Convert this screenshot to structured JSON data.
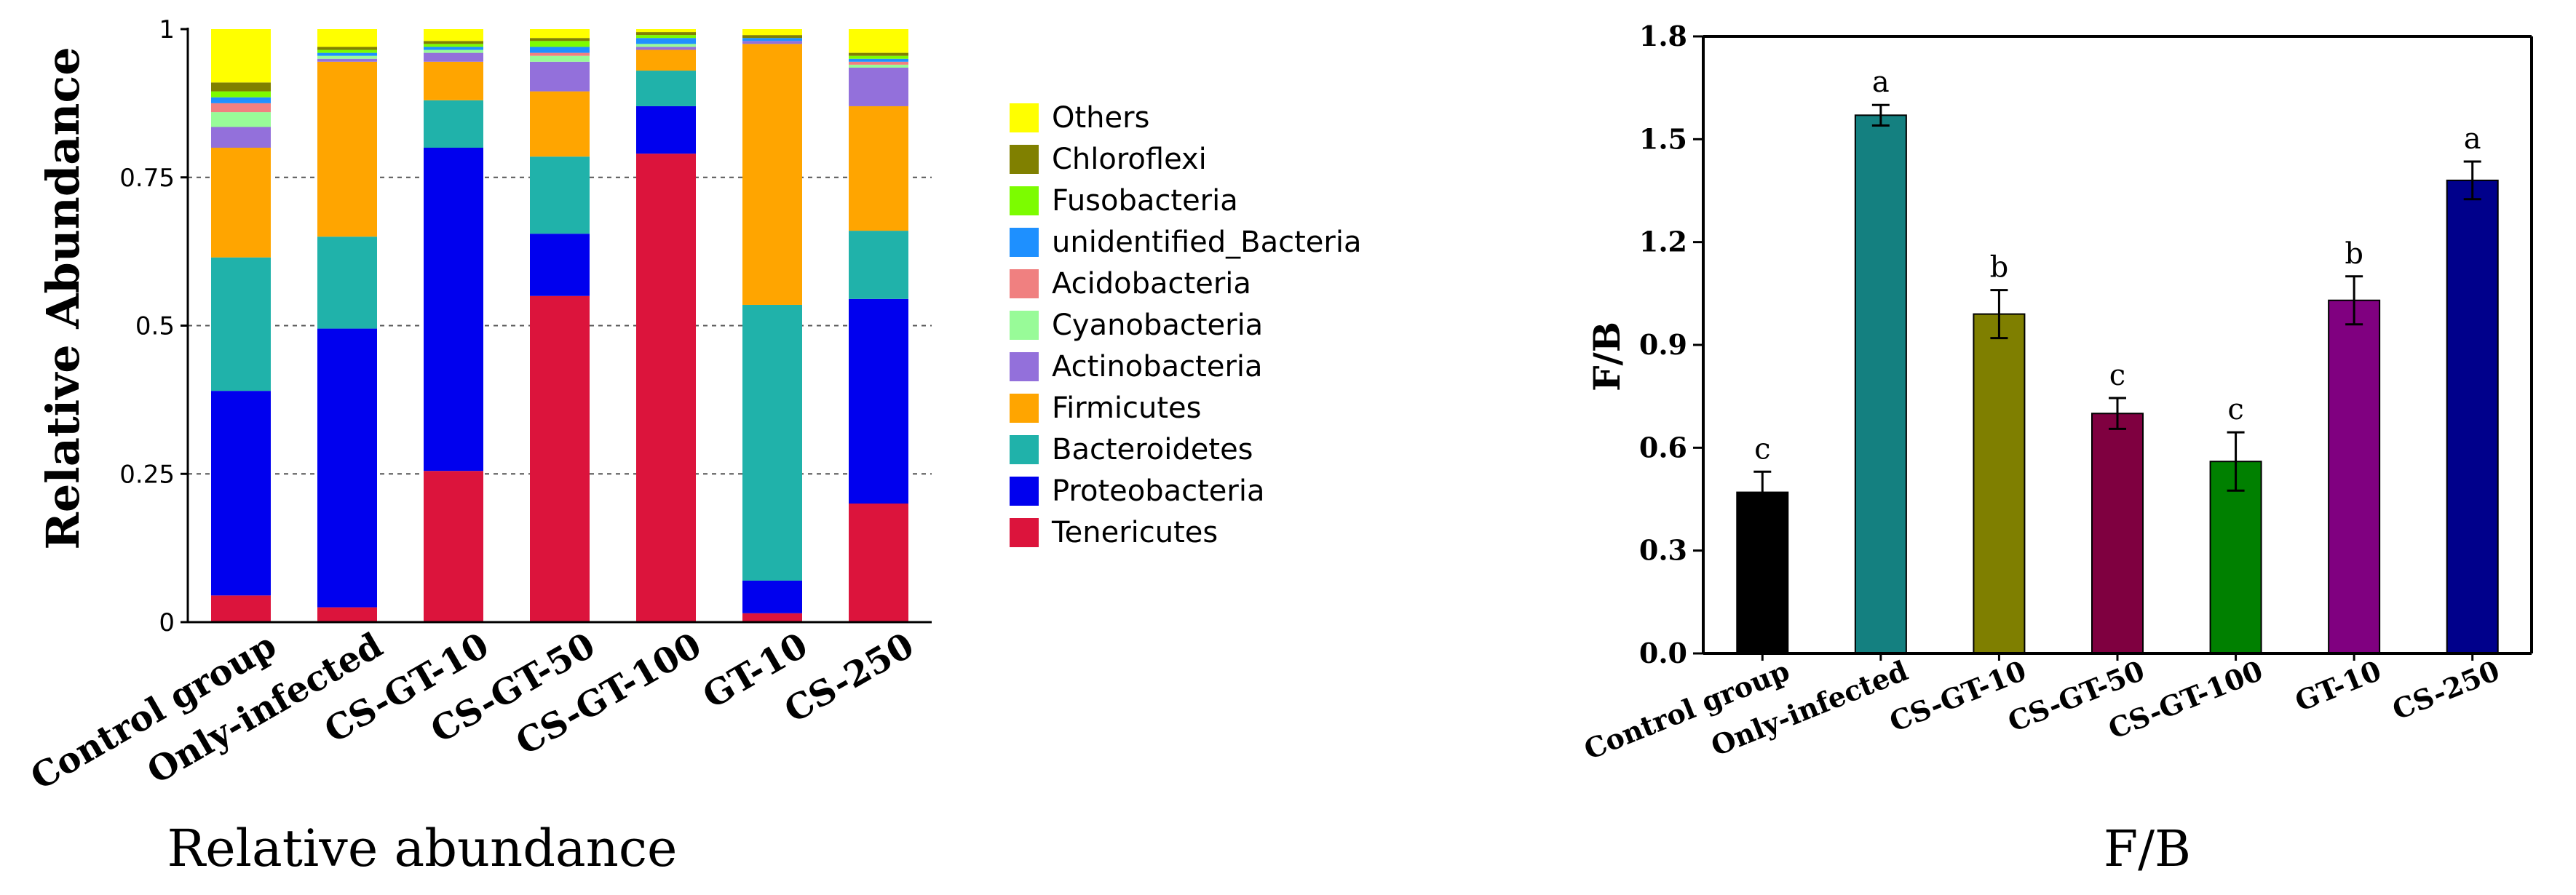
{
  "chart_data": [
    {
      "type": "bar",
      "stacked": true,
      "title": "Relative abundance",
      "xlabel": "",
      "ylabel": "Relative Abundance",
      "ylim": [
        0,
        1
      ],
      "yticks": [
        0,
        0.25,
        0.5,
        0.75,
        1
      ],
      "ytick_labels": [
        "0",
        "0.25",
        "0.5",
        "0.75",
        "1"
      ],
      "grid": "dashed horizontal",
      "legend_position": "right",
      "categories": [
        "Control group",
        "Only-infected",
        "CS-GT-10",
        "CS-GT-50",
        "CS-GT-100",
        "GT-10",
        "CS-250"
      ],
      "series": [
        {
          "name": "Tenericutes",
          "color": "#dc143c",
          "values": [
            0.045,
            0.025,
            0.255,
            0.55,
            0.79,
            0.015,
            0.2
          ]
        },
        {
          "name": "Proteobacteria",
          "color": "#0000ee",
          "values": [
            0.345,
            0.47,
            0.545,
            0.105,
            0.08,
            0.055,
            0.345
          ]
        },
        {
          "name": "Bacteroidetes",
          "color": "#20b2aa",
          "values": [
            0.225,
            0.155,
            0.08,
            0.13,
            0.06,
            0.465,
            0.115
          ]
        },
        {
          "name": "Firmicutes",
          "color": "#ffa500",
          "values": [
            0.185,
            0.295,
            0.065,
            0.11,
            0.035,
            0.44,
            0.21
          ]
        },
        {
          "name": "Actinobacteria",
          "color": "#9370db",
          "values": [
            0.035,
            0.005,
            0.015,
            0.05,
            0.005,
            0.005,
            0.065
          ]
        },
        {
          "name": "Cyanobacteria",
          "color": "#98fb98",
          "values": [
            0.025,
            0.005,
            0.005,
            0.01,
            0.005,
            0.0,
            0.005
          ]
        },
        {
          "name": "Acidobacteria",
          "color": "#f08080",
          "values": [
            0.015,
            0.0,
            0.0,
            0.005,
            0.0,
            0.0,
            0.005
          ]
        },
        {
          "name": "unidentified_Bacteria",
          "color": "#1e90ff",
          "values": [
            0.01,
            0.005,
            0.005,
            0.01,
            0.01,
            0.005,
            0.005
          ]
        },
        {
          "name": "Fusobacteria",
          "color": "#7cfc00",
          "values": [
            0.01,
            0.005,
            0.005,
            0.01,
            0.005,
            0.0,
            0.005
          ]
        },
        {
          "name": "Chloroflexi",
          "color": "#808000",
          "values": [
            0.015,
            0.005,
            0.005,
            0.005,
            0.005,
            0.005,
            0.005
          ]
        },
        {
          "name": "Others",
          "color": "#ffff00",
          "values": [
            0.09,
            0.03,
            0.02,
            0.015,
            0.005,
            0.01,
            0.04
          ]
        }
      ],
      "legend_order": [
        "Others",
        "Chloroflexi",
        "Fusobacteria",
        "unidentified_Bacteria",
        "Acidobacteria",
        "Cyanobacteria",
        "Actinobacteria",
        "Firmicutes",
        "Bacteroidetes",
        "Proteobacteria",
        "Tenericutes"
      ]
    },
    {
      "type": "bar",
      "title": "F/B",
      "xlabel": "",
      "ylabel": "F/B",
      "ylim": [
        0,
        1.8
      ],
      "yticks": [
        0,
        0.3,
        0.6,
        0.9,
        1.2,
        1.5,
        1.8
      ],
      "ytick_labels": [
        "0.0",
        "0.3",
        "0.6",
        "0.9",
        "1.2",
        "1.5",
        "1.8"
      ],
      "categories": [
        "Control group",
        "Only-infected",
        "CS-GT-10",
        "CS-GT-50",
        "CS-GT-100",
        "GT-10",
        "CS-250"
      ],
      "values": [
        0.47,
        1.57,
        0.99,
        0.7,
        0.56,
        1.03,
        1.38
      ],
      "errors": [
        0.06,
        0.03,
        0.07,
        0.045,
        0.085,
        0.07,
        0.055
      ],
      "letters": [
        "c",
        "a",
        "b",
        "c",
        "c",
        "b",
        "a"
      ],
      "colors": [
        "#000000",
        "#148080",
        "#7f7f00",
        "#7f0040",
        "#008000",
        "#800080",
        "#00008b"
      ]
    }
  ]
}
